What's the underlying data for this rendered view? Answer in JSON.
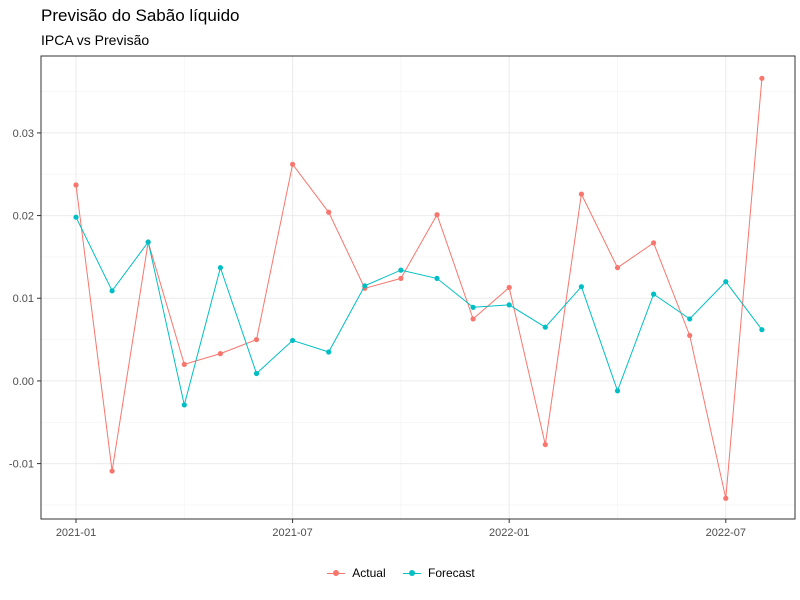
{
  "chart_data": {
    "type": "line",
    "title": "Previsão do Sabão líquido",
    "subtitle": "IPCA vs Previsão",
    "xlabel": "",
    "ylabel": "",
    "x": [
      "2021-01",
      "2021-02",
      "2021-03",
      "2021-04",
      "2021-05",
      "2021-06",
      "2021-07",
      "2021-08",
      "2021-09",
      "2021-10",
      "2021-11",
      "2021-12",
      "2022-01",
      "2022-02",
      "2022-03",
      "2022-04",
      "2022-05",
      "2022-06",
      "2022-07",
      "2022-08"
    ],
    "x_ticks": [
      "2021-01",
      "2021-07",
      "2022-01",
      "2022-07"
    ],
    "y_ticks": [
      -0.01,
      0.0,
      0.01,
      0.02,
      0.03
    ],
    "y_tick_labels": [
      "-0.01",
      "0.00",
      "0.01",
      "0.02",
      "0.03"
    ],
    "ylim": [
      -0.0167,
      0.0393
    ],
    "grid": true,
    "legend_position": "bottom",
    "series": [
      {
        "name": "Actual",
        "color": "#F8766D",
        "values": [
          0.0237,
          -0.0109,
          0.0168,
          0.002,
          0.0033,
          0.005,
          0.0262,
          0.0204,
          0.0112,
          0.0124,
          0.0201,
          0.0075,
          0.0113,
          -0.0077,
          0.0226,
          0.0137,
          0.0167,
          0.0055,
          -0.0142,
          0.0366
        ]
      },
      {
        "name": "Forecast",
        "color": "#00BFC4",
        "values": [
          0.0198,
          0.0109,
          0.0168,
          -0.0029,
          0.0137,
          0.0009,
          0.0049,
          0.0035,
          0.0115,
          0.0134,
          0.0124,
          0.0089,
          0.0092,
          0.0065,
          0.0114,
          -0.0012,
          0.0105,
          0.0075,
          0.012,
          0.0062
        ]
      }
    ]
  }
}
